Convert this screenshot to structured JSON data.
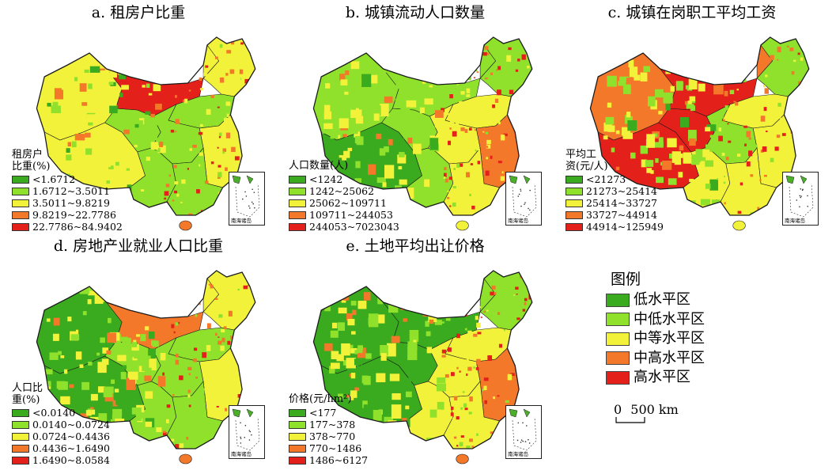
{
  "colors": {
    "level1": "#3aaa1e",
    "level2": "#8fe12c",
    "level3": "#f2f23a",
    "level4": "#f4782a",
    "level5": "#e4201a",
    "boundary": "#1a1a1a",
    "island": "#4caf2a"
  },
  "panels": [
    {
      "id": "a",
      "title": "a. 租房户比重",
      "legend_title": "租房户\n比重(%)",
      "legend": [
        "<1.6712",
        "1.6712~3.5011",
        "3.5011~9.8219",
        "9.8219~22.7786",
        "22.7786~84.9402"
      ],
      "inset_label": "南海诸岛",
      "region_levels": {
        "xinjiang": 3,
        "tibet": 3,
        "qinghai": 2,
        "inner_mongolia_west": 5,
        "inner_mongolia_east": 3,
        "northeast": 3,
        "north": 2,
        "central": 2,
        "south": 2,
        "southwest": 2,
        "east": 3
      }
    },
    {
      "id": "b",
      "title": "b. 城镇流动人口数量",
      "legend_title": "人口数量(人)",
      "legend": [
        "<1242",
        "1242~25062",
        "25062~109711",
        "109711~244053",
        "244053~7023043"
      ],
      "inset_label": "南海诸岛",
      "region_levels": {
        "xinjiang": 2,
        "tibet": 1,
        "qinghai": 2,
        "inner_mongolia_west": 2,
        "inner_mongolia_east": 2,
        "northeast": 2,
        "north": 3,
        "central": 3,
        "south": 3,
        "southwest": 2,
        "east": 4
      }
    },
    {
      "id": "c",
      "title": "c. 城镇在岗职工平均工资",
      "legend_title": "平均工\n资(元/人)",
      "legend": [
        "<21273",
        "21273~25414",
        "25414~33727",
        "33727~44914",
        "44914~125949"
      ],
      "inset_label": "南海诸岛",
      "region_levels": {
        "xinjiang": 4,
        "tibet": 5,
        "qinghai": 5,
        "inner_mongolia_west": 5,
        "inner_mongolia_east": 4,
        "northeast": 2,
        "north": 3,
        "central": 2,
        "south": 3,
        "southwest": 3,
        "east": 3
      }
    },
    {
      "id": "d",
      "title": "d. 房地产业就业人口比重",
      "legend_title": "人口比\n重(%)",
      "legend": [
        "<0.0140",
        "0.0140~0.0724",
        "0.0724~0.4436",
        "0.4436~1.6490",
        "1.6490~8.0584"
      ],
      "inset_label": "南海诸岛",
      "region_levels": {
        "xinjiang": 1,
        "tibet": 1,
        "qinghai": 2,
        "inner_mongolia_west": 4,
        "inner_mongolia_east": 3,
        "northeast": 3,
        "north": 2,
        "central": 2,
        "south": 2,
        "southwest": 2,
        "east": 3
      }
    },
    {
      "id": "e",
      "title": "e. 土地平均出让价格",
      "legend_title": "价格(元/hm²)",
      "legend": [
        "<177",
        "177~378",
        "378~770",
        "770~1486",
        "1486~6127"
      ],
      "inset_label": "南海诸岛",
      "region_levels": {
        "xinjiang": 1,
        "tibet": 1,
        "qinghai": 1,
        "inner_mongolia_west": 1,
        "inner_mongolia_east": 2,
        "northeast": 2,
        "north": 3,
        "central": 3,
        "south": 3,
        "southwest": 3,
        "east": 4
      }
    }
  ],
  "main_legend": {
    "title": "图例",
    "items": [
      "低水平区",
      "中低水平区",
      "中等水平区",
      "中高水平区",
      "高水平区"
    ]
  },
  "scale_bar": {
    "zero": "0",
    "label": "500 km"
  }
}
